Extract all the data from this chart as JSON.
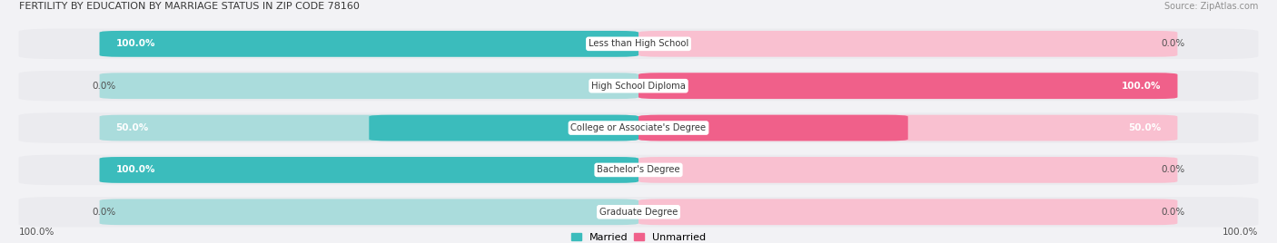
{
  "title": "FERTILITY BY EDUCATION BY MARRIAGE STATUS IN ZIP CODE 78160",
  "source": "Source: ZipAtlas.com",
  "categories": [
    "Less than High School",
    "High School Diploma",
    "College or Associate's Degree",
    "Bachelor's Degree",
    "Graduate Degree"
  ],
  "married_pct": [
    100.0,
    0.0,
    50.0,
    100.0,
    0.0
  ],
  "unmarried_pct": [
    0.0,
    100.0,
    50.0,
    0.0,
    0.0
  ],
  "married_color": "#3bbcbc",
  "unmarried_color": "#f0608a",
  "married_light_color": "#aadcdc",
  "unmarried_light_color": "#f9c0d0",
  "row_bg_color": "#ebebef",
  "title_color": "#383838",
  "text_color": "#505050",
  "source_color": "#909090",
  "figsize": [
    14.06,
    2.68
  ],
  "dpi": 100,
  "bar_height": 0.62,
  "axis_left_label": "100.0%",
  "axis_right_label": "100.0%"
}
